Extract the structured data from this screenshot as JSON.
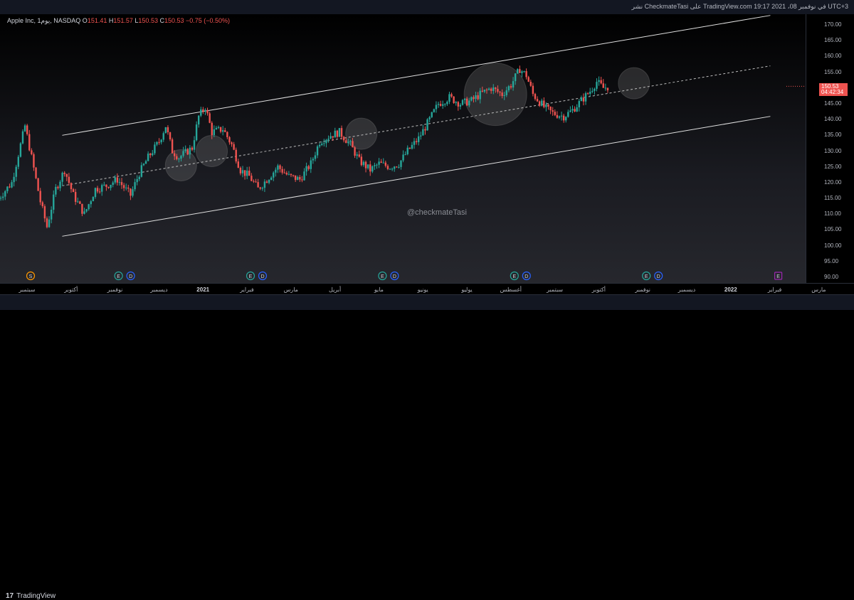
{
  "header": {
    "published_text": "نشر CheckmateTasi على TradingView.com في نوفمبر 08، 2021 19:17 UTC+3"
  },
  "legend": {
    "symbol": "Apple Inc, 1يوم, NASDAQ",
    "o_label": "O",
    "o_value": "151.41",
    "h_label": "H",
    "h_value": "151.57",
    "l_label": "L",
    "l_value": "150.53",
    "c_label": "C",
    "c_value": "150.53",
    "change": "−0.75 (−0.50%)"
  },
  "watermark": "@checkmateTasi",
  "last_price": {
    "price": "150.53",
    "countdown": "04:42:34",
    "color": "#ef5350"
  },
  "price_axis": [
    "170.00",
    "165.00",
    "160.00",
    "155.00",
    "150.00",
    "145.00",
    "140.00",
    "135.00",
    "130.00",
    "125.00",
    "120.00",
    "115.00",
    "110.00",
    "105.00",
    "100.00",
    "95.00",
    "90.00"
  ],
  "time_axis": [
    {
      "label": "سبتمبر",
      "bold": false
    },
    {
      "label": "أكتوبر",
      "bold": false
    },
    {
      "label": "نوفمبر",
      "bold": false
    },
    {
      "label": "ديسمبر",
      "bold": false
    },
    {
      "label": "2021",
      "bold": true
    },
    {
      "label": "فبراير",
      "bold": false
    },
    {
      "label": "مارس",
      "bold": false
    },
    {
      "label": "أبريل",
      "bold": false
    },
    {
      "label": "مايو",
      "bold": false
    },
    {
      "label": "يونيو",
      "bold": false
    },
    {
      "label": "يوليو",
      "bold": false
    },
    {
      "label": "أغسطس",
      "bold": false
    },
    {
      "label": "سبتمبر",
      "bold": false
    },
    {
      "label": "أكتوبر",
      "bold": false
    },
    {
      "label": "نوفمبر",
      "bold": false
    },
    {
      "label": "ديسمبر",
      "bold": false
    },
    {
      "label": "2022",
      "bold": true
    },
    {
      "label": "فبراير",
      "bold": false
    },
    {
      "label": "مارس",
      "bold": false
    }
  ],
  "event_markers": [
    {
      "month_index": 0,
      "letters": [
        "S"
      ],
      "colors": [
        "#ff9800"
      ]
    },
    {
      "month_index": 2,
      "letters": [
        "E",
        "D"
      ],
      "colors": [
        "#26a69a",
        "#2962ff"
      ]
    },
    {
      "month_index": 5,
      "letters": [
        "E",
        "D"
      ],
      "colors": [
        "#26a69a",
        "#2962ff"
      ]
    },
    {
      "month_index": 8,
      "letters": [
        "E",
        "D"
      ],
      "colors": [
        "#26a69a",
        "#2962ff"
      ]
    },
    {
      "month_index": 11,
      "letters": [
        "E",
        "D"
      ],
      "colors": [
        "#26a69a",
        "#2962ff"
      ]
    },
    {
      "month_index": 14,
      "letters": [
        "E",
        "D"
      ],
      "colors": [
        "#26a69a",
        "#2962ff"
      ]
    },
    {
      "month_index": 17,
      "letters": [
        "E"
      ],
      "colors": [
        "#9c27b0"
      ]
    }
  ],
  "footer": {
    "brand": "TradingView",
    "logo": "17"
  },
  "chart_data": {
    "type": "candlestick",
    "symbol": "AAPL",
    "timeframe": "1D",
    "ylim": [
      88,
      173
    ],
    "up_color": "#26a69a",
    "down_color": "#ef5350",
    "x_months": [
      "سبتمبر",
      "أكتوبر",
      "نوفمبر",
      "ديسمبر",
      "2021",
      "فبراير",
      "مارس",
      "أبريل",
      "مايو",
      "يونيو",
      "يوليو",
      "أغسطس",
      "سبتمبر",
      "أكتوبر",
      "نوفمبر"
    ],
    "close_series": [
      {
        "x": 0.0,
        "y": 115
      },
      {
        "x": 0.3,
        "y": 120
      },
      {
        "x": 0.6,
        "y": 138
      },
      {
        "x": 0.75,
        "y": 128
      },
      {
        "x": 0.95,
        "y": 114
      },
      {
        "x": 1.1,
        "y": 106
      },
      {
        "x": 1.3,
        "y": 118
      },
      {
        "x": 1.5,
        "y": 124
      },
      {
        "x": 1.7,
        "y": 116
      },
      {
        "x": 1.95,
        "y": 110
      },
      {
        "x": 2.2,
        "y": 118
      },
      {
        "x": 2.45,
        "y": 119
      },
      {
        "x": 2.7,
        "y": 121
      },
      {
        "x": 3.0,
        "y": 116
      },
      {
        "x": 3.2,
        "y": 123
      },
      {
        "x": 3.4,
        "y": 128
      },
      {
        "x": 3.65,
        "y": 133
      },
      {
        "x": 3.8,
        "y": 138
      },
      {
        "x": 3.95,
        "y": 130
      },
      {
        "x": 4.1,
        "y": 128
      },
      {
        "x": 4.4,
        "y": 131
      },
      {
        "x": 4.55,
        "y": 141
      },
      {
        "x": 4.7,
        "y": 144
      },
      {
        "x": 4.85,
        "y": 136
      },
      {
        "x": 5.1,
        "y": 137
      },
      {
        "x": 5.3,
        "y": 132
      },
      {
        "x": 5.5,
        "y": 124
      },
      {
        "x": 5.7,
        "y": 122
      },
      {
        "x": 5.9,
        "y": 118
      },
      {
        "x": 6.1,
        "y": 121
      },
      {
        "x": 6.35,
        "y": 125
      },
      {
        "x": 6.6,
        "y": 122
      },
      {
        "x": 6.85,
        "y": 121
      },
      {
        "x": 7.1,
        "y": 126
      },
      {
        "x": 7.3,
        "y": 133
      },
      {
        "x": 7.55,
        "y": 135
      },
      {
        "x": 7.75,
        "y": 136
      },
      {
        "x": 8.0,
        "y": 132
      },
      {
        "x": 8.2,
        "y": 127
      },
      {
        "x": 8.45,
        "y": 124
      },
      {
        "x": 8.65,
        "y": 126
      },
      {
        "x": 8.9,
        "y": 125
      },
      {
        "x": 9.1,
        "y": 126
      },
      {
        "x": 9.3,
        "y": 130
      },
      {
        "x": 9.55,
        "y": 134
      },
      {
        "x": 9.8,
        "y": 140
      },
      {
        "x": 10.0,
        "y": 145
      },
      {
        "x": 10.25,
        "y": 147
      },
      {
        "x": 10.5,
        "y": 145
      },
      {
        "x": 10.75,
        "y": 146
      },
      {
        "x": 10.95,
        "y": 148
      },
      {
        "x": 11.2,
        "y": 150
      },
      {
        "x": 11.45,
        "y": 148
      },
      {
        "x": 11.65,
        "y": 151
      },
      {
        "x": 11.85,
        "y": 156
      },
      {
        "x": 12.0,
        "y": 154
      },
      {
        "x": 12.15,
        "y": 148
      },
      {
        "x": 12.4,
        "y": 144
      },
      {
        "x": 12.6,
        "y": 142
      },
      {
        "x": 12.85,
        "y": 141
      },
      {
        "x": 13.05,
        "y": 143
      },
      {
        "x": 13.25,
        "y": 146
      },
      {
        "x": 13.45,
        "y": 149
      },
      {
        "x": 13.6,
        "y": 152
      },
      {
        "x": 13.75,
        "y": 150
      },
      {
        "x": 13.9,
        "y": 150.53
      }
    ],
    "drawings": {
      "channel_upper": {
        "from": {
          "x": 0.8,
          "y": 135
        },
        "to": {
          "x": 16.9,
          "y": 173
        }
      },
      "channel_lower": {
        "from": {
          "x": 0.8,
          "y": 103
        },
        "to": {
          "x": 16.9,
          "y": 141
        }
      },
      "channel_mid": {
        "from": {
          "x": 0.8,
          "y": 119
        },
        "to": {
          "x": 16.9,
          "y": 157
        }
      },
      "highlight_circles": [
        {
          "x": 3.5,
          "y": 125.5
        },
        {
          "x": 4.2,
          "y": 130
        },
        {
          "x": 7.6,
          "y": 135.5
        },
        {
          "x": 10.65,
          "y": 148
        },
        {
          "x": 13.8,
          "y": 151.5
        }
      ]
    }
  }
}
